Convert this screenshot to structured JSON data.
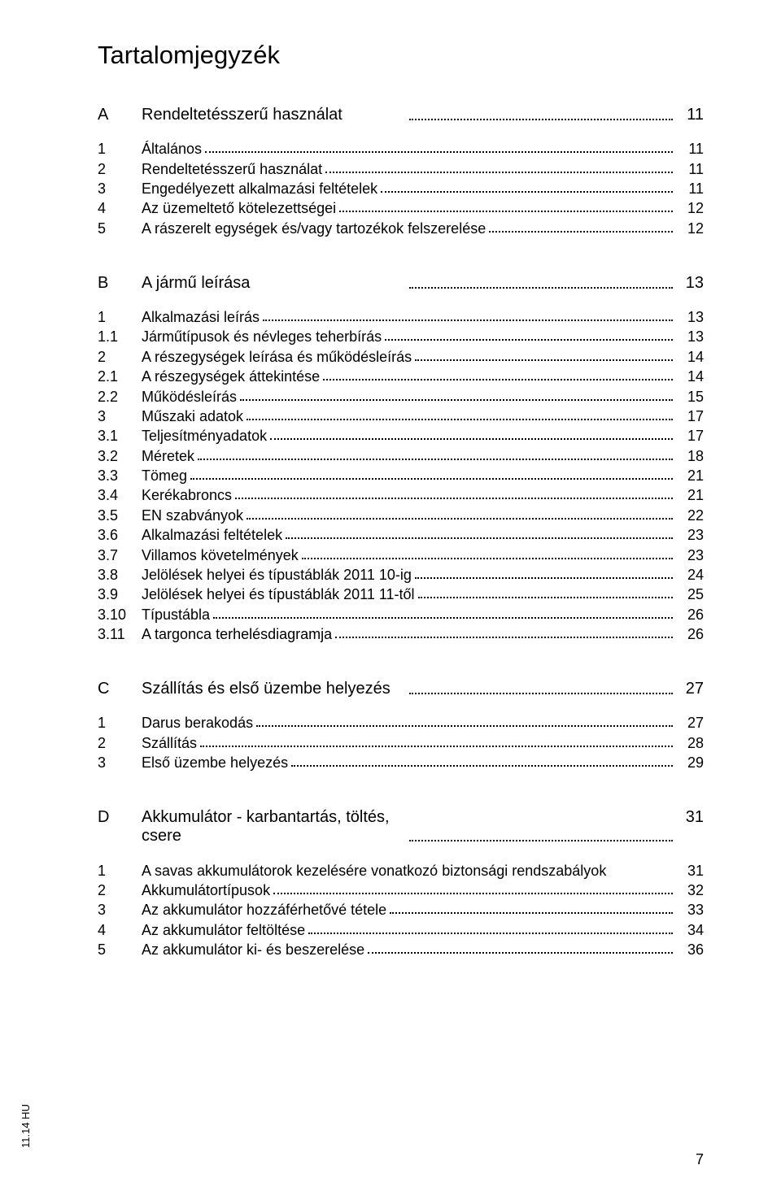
{
  "title": "Tartalomjegyzék",
  "side_label": "11.14 HU",
  "page_number": "7",
  "sections": [
    {
      "letter": "A",
      "heading": "Rendeltetésszerű használat",
      "page": "11",
      "entries": [
        {
          "num": "1",
          "label": "Általános",
          "page": "11"
        },
        {
          "num": "2",
          "label": "Rendeltetésszerű használat",
          "page": "11"
        },
        {
          "num": "3",
          "label": "Engedélyezett alkalmazási feltételek",
          "page": "11"
        },
        {
          "num": "4",
          "label": "Az üzemeltető kötelezettségei",
          "page": "12"
        },
        {
          "num": "5",
          "label": "A rászerelt egységek és/vagy tartozékok felszerelése",
          "page": "12"
        }
      ]
    },
    {
      "letter": "B",
      "heading": "A jármű leírása",
      "page": "13",
      "entries": [
        {
          "num": "1",
          "label": "Alkalmazási leírás",
          "page": "13"
        },
        {
          "num": "1.1",
          "label": "Járműtípusok és névleges teherbírás",
          "page": "13"
        },
        {
          "num": "2",
          "label": "A részegységek leírása és működésleírás",
          "page": "14"
        },
        {
          "num": "2.1",
          "label": "A részegységek áttekintése",
          "page": "14"
        },
        {
          "num": "2.2",
          "label": "Működésleírás",
          "page": "15"
        },
        {
          "num": "3",
          "label": "Műszaki adatok",
          "page": "17"
        },
        {
          "num": "3.1",
          "label": "Teljesítményadatok",
          "page": "17"
        },
        {
          "num": "3.2",
          "label": "Méretek",
          "page": "18"
        },
        {
          "num": "3.3",
          "label": "Tömeg",
          "page": "21"
        },
        {
          "num": "3.4",
          "label": "Kerékabroncs",
          "page": "21"
        },
        {
          "num": "3.5",
          "label": "EN szabványok",
          "page": "22"
        },
        {
          "num": "3.6",
          "label": "Alkalmazási feltételek",
          "page": "23"
        },
        {
          "num": "3.7",
          "label": "Villamos követelmények",
          "page": "23"
        },
        {
          "num": "3.8",
          "label": "Jelölések helyei és típustáblák 2011 10-ig",
          "page": "24"
        },
        {
          "num": "3.9",
          "label": "Jelölések helyei és típustáblák 2011 11-től",
          "page": "25"
        },
        {
          "num": "3.10",
          "label": "Típustábla",
          "page": "26"
        },
        {
          "num": "3.11",
          "label": "A targonca terhelésdiagramja",
          "page": "26"
        }
      ]
    },
    {
      "letter": "C",
      "heading": "Szállítás és első üzembe helyezés",
      "page": "27",
      "entries": [
        {
          "num": "1",
          "label": "Darus berakodás",
          "page": "27"
        },
        {
          "num": "2",
          "label": "Szállítás",
          "page": "28"
        },
        {
          "num": "3",
          "label": "Első üzembe helyezés",
          "page": "29"
        }
      ]
    },
    {
      "letter": "D",
      "heading": "Akkumulátor - karbantartás, töltés, csere",
      "page": "31",
      "entries": [
        {
          "num": "1",
          "label": "A savas akkumulátorok kezelésére vonatkozó biztonsági rendszabályok",
          "page": "31",
          "nodots": true
        },
        {
          "num": "2",
          "label": "Akkumulátortípusok",
          "page": "32"
        },
        {
          "num": "3",
          "label": "Az akkumulátor hozzáférhetővé tétele",
          "page": "33"
        },
        {
          "num": "4",
          "label": "Az akkumulátor feltöltése",
          "page": "34"
        },
        {
          "num": "5",
          "label": "Az akkumulátor ki- és beszerelése",
          "page": "36"
        }
      ]
    }
  ]
}
